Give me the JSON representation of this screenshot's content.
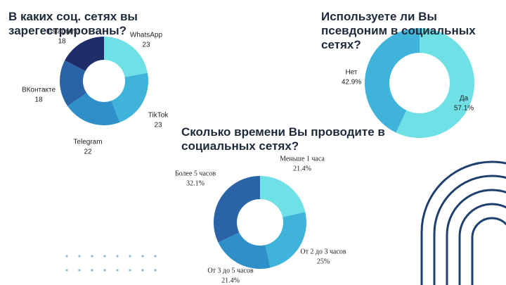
{
  "chart_data": [
    {
      "type": "pie",
      "title": "В каких соц. сетях вы зарегестрированы?",
      "categories": [
        "WhatsApp",
        "TikTok",
        "Telegram",
        "ВКонтакте",
        "Instagram"
      ],
      "values": [
        23,
        23,
        22,
        18,
        18
      ],
      "colors": [
        "#6ee0e6",
        "#3fb3d9",
        "#2e8fc9",
        "#2a64a6",
        "#1f2e6b"
      ]
    },
    {
      "type": "pie",
      "title": "Используете ли Вы псевдоним в социальных сетях?",
      "categories": [
        "Да",
        "Нет"
      ],
      "values": [
        57.1,
        42.9
      ],
      "value_labels": [
        "57.1%",
        "42.9%"
      ],
      "colors": [
        "#6ee0e6",
        "#3fb3d9"
      ]
    },
    {
      "type": "pie",
      "title": "Сколько времени Вы проводите в социальных сетях?",
      "categories": [
        "Меньше 1 часа",
        "От 2 до 3 часов",
        "От 3 до 5 часов",
        "Более 5 часов"
      ],
      "values": [
        21.4,
        25,
        21.4,
        32.1
      ],
      "value_labels": [
        "21.4%",
        "25%",
        "21.4%",
        "32.1%"
      ],
      "colors": [
        "#6ee0e6",
        "#3fb3d9",
        "#2e8fc9",
        "#2a64a6"
      ]
    }
  ]
}
